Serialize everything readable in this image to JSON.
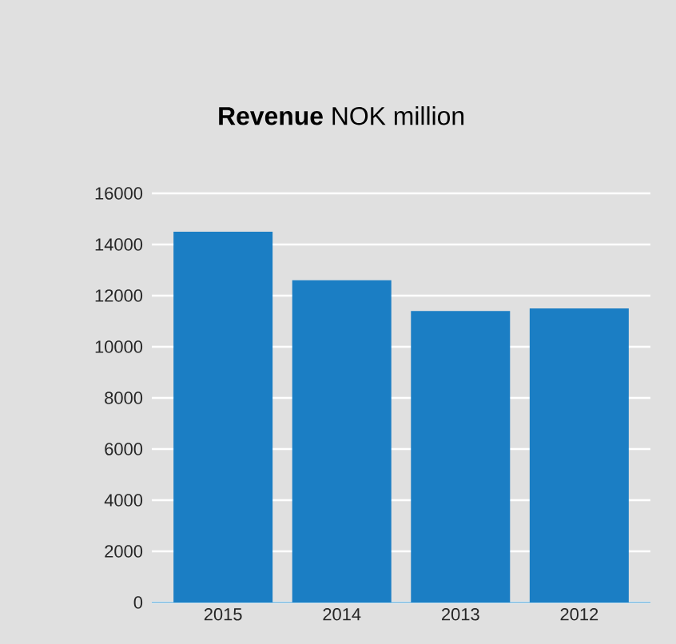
{
  "chart_data": {
    "type": "bar",
    "title": "**Revenue** NOK million",
    "categories": [
      "2015",
      "2014",
      "2013",
      "2012"
    ],
    "values": [
      14500,
      12600,
      11400,
      11500
    ],
    "color": "#1b7ec4",
    "ylim": [
      0,
      16000
    ],
    "yticks": [
      0,
      2000,
      4000,
      6000,
      8000,
      10000,
      12000,
      14000,
      16000
    ],
    "grid": "y"
  }
}
